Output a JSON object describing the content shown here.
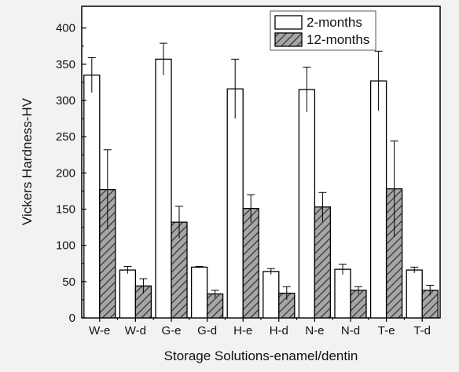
{
  "chart_data": {
    "type": "bar",
    "categories": [
      "W-e",
      "W-d",
      "G-e",
      "G-d",
      "H-e",
      "H-d",
      "N-e",
      "N-d",
      "T-e",
      "T-d"
    ],
    "series": [
      {
        "name": "2-months",
        "values": [
          335,
          66,
          357,
          70,
          316,
          64,
          315,
          67,
          327,
          66
        ],
        "errors": [
          24,
          5,
          22,
          1,
          41,
          4,
          31,
          7,
          41,
          4
        ],
        "fill": "#ffffff",
        "pattern": "none"
      },
      {
        "name": "12-months",
        "values": [
          177,
          44,
          132,
          33,
          151,
          34,
          153,
          38,
          178,
          38
        ],
        "errors": [
          55,
          10,
          22,
          5,
          19,
          9,
          20,
          5,
          66,
          7
        ],
        "fill": "#a6a6a6",
        "pattern": "diagonal-hatch"
      }
    ],
    "xlabel": "Storage Solutions-enamel/dentin",
    "ylabel": "Vickers Hardness-HV",
    "ylim": [
      0,
      430
    ],
    "yticks": [
      0,
      50,
      100,
      150,
      200,
      250,
      300,
      350,
      400
    ],
    "grid": false,
    "legend_position": "top-right",
    "colors": {
      "axis": "#000000",
      "hatch": "#333333",
      "background": "#f2f2f2"
    }
  }
}
